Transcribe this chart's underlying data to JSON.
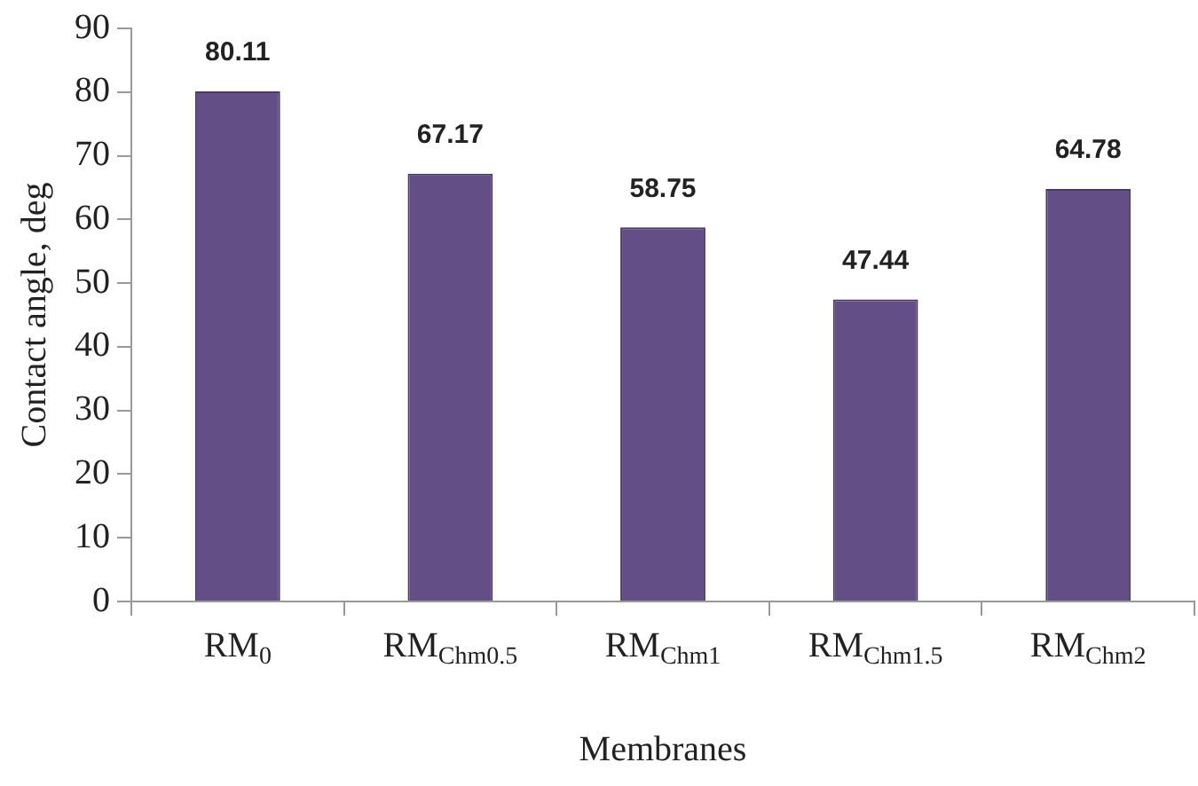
{
  "chart_data": {
    "type": "bar",
    "xlabel": "Membranes",
    "ylabel": "Contact angle, deg",
    "categories": [
      "RM$_{0}$",
      "RM$_{Chm0.5}$",
      "RM$_{Chm1}$",
      "RM$_{Chm1.5}$",
      "RM$_{Chm2}$"
    ],
    "values": [
      80.11,
      67.17,
      58.75,
      47.44,
      64.78
    ],
    "color": "#634e85",
    "ylim": [
      0,
      90
    ],
    "yticks": [
      0,
      10,
      20,
      30,
      40,
      50,
      60,
      70,
      80,
      90
    ],
    "data_labels": true
  }
}
